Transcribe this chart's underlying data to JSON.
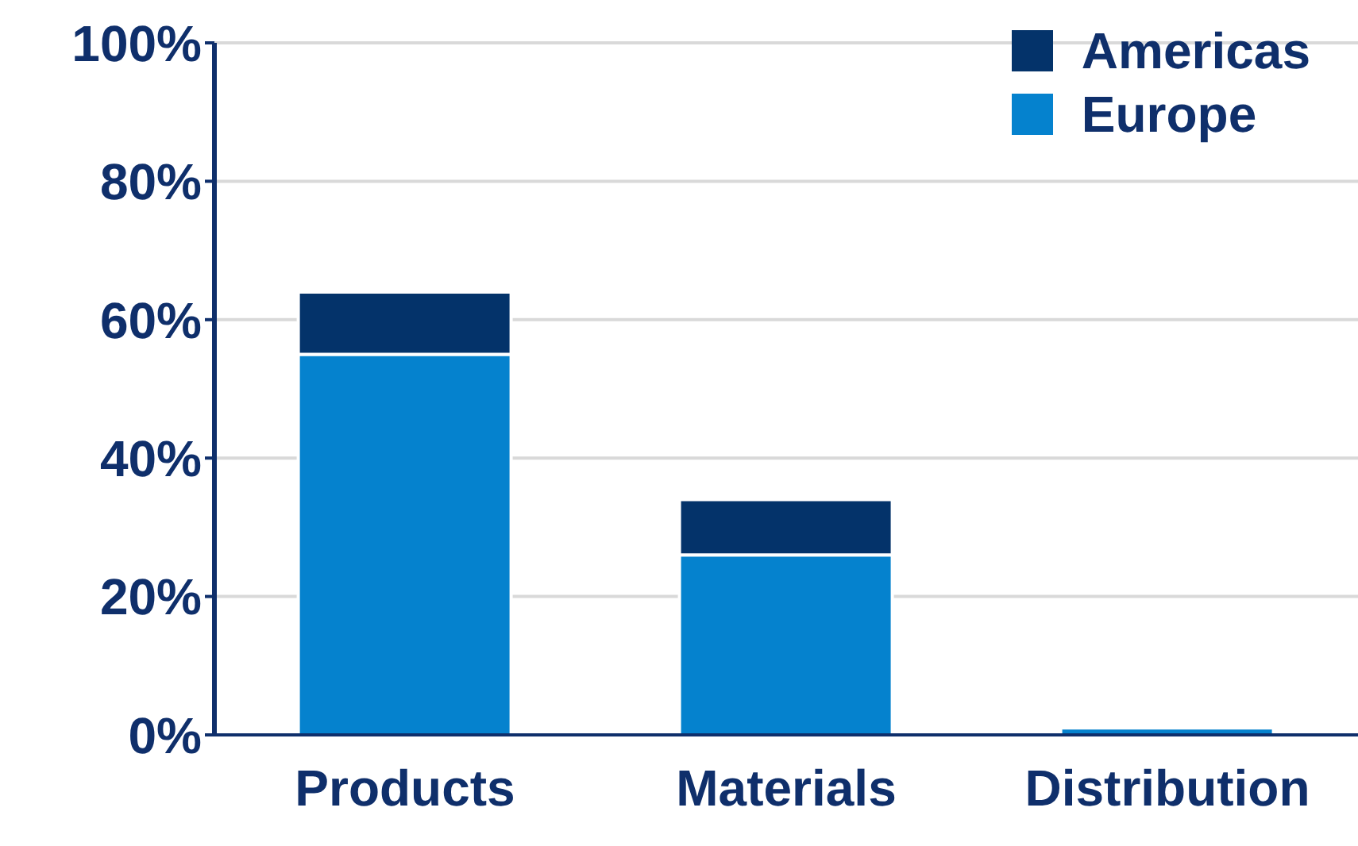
{
  "chart_data": {
    "type": "bar",
    "stacked": true,
    "categories": [
      "Products",
      "Materials",
      "Distribution"
    ],
    "series": [
      {
        "name": "Europe",
        "color": "#0582ce",
        "values": [
          55,
          26,
          1
        ]
      },
      {
        "name": "Americas",
        "color": "#04336a",
        "values": [
          9,
          8,
          0
        ]
      }
    ],
    "ylim": [
      0,
      100
    ],
    "yticks": [
      {
        "value": 0,
        "label": "0%"
      },
      {
        "value": 20,
        "label": "20%"
      },
      {
        "value": 40,
        "label": "40%"
      },
      {
        "value": 60,
        "label": "60%"
      },
      {
        "value": 80,
        "label": "80%"
      },
      {
        "value": 100,
        "label": "100%"
      }
    ],
    "grid": "y",
    "legend": "top right"
  }
}
